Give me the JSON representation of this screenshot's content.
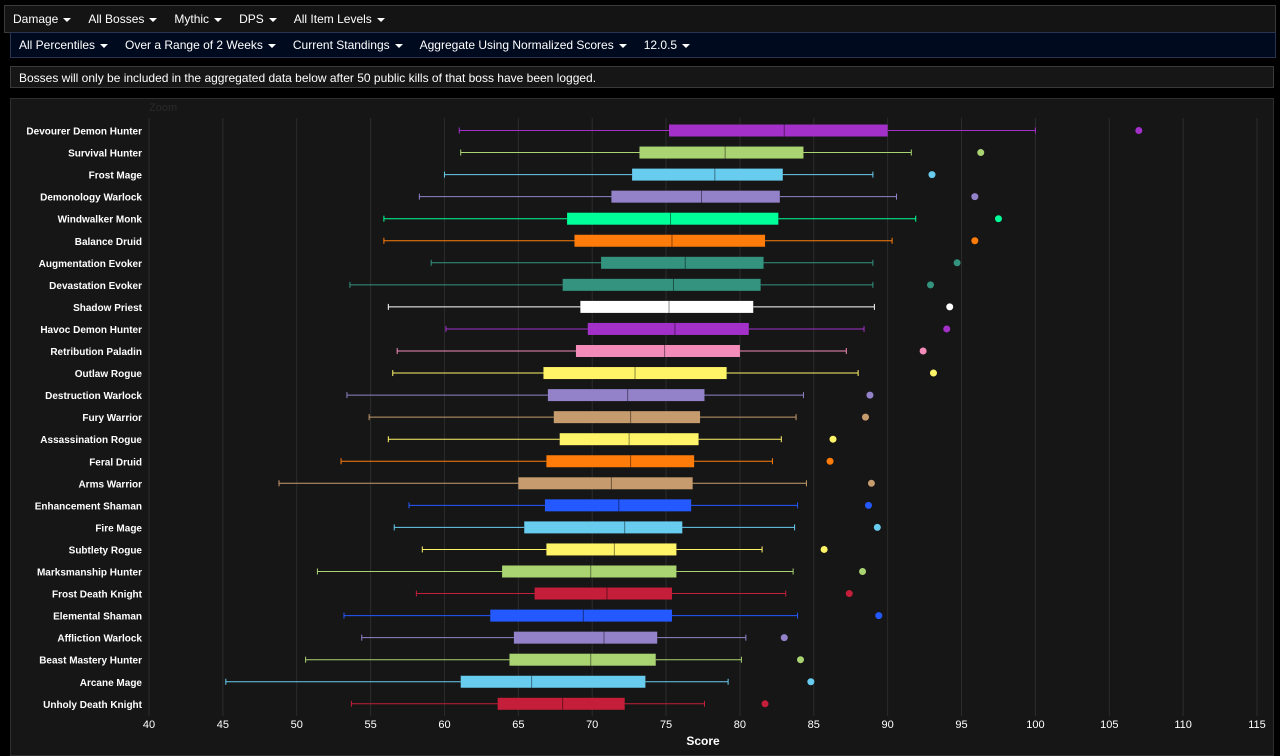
{
  "toolbar_primary": [
    {
      "label": "Damage"
    },
    {
      "label": "All Bosses"
    },
    {
      "label": "Mythic"
    },
    {
      "label": "DPS"
    },
    {
      "label": "All Item Levels"
    }
  ],
  "toolbar_secondary": [
    {
      "label": "All Percentiles"
    },
    {
      "label": "Over a Range of 2 Weeks"
    },
    {
      "label": "Current Standings"
    },
    {
      "label": "Aggregate Using Normalized Scores"
    },
    {
      "label": "12.0.5"
    }
  ],
  "notice": "Bosses will only be included in the aggregated data below after 50 public kills of that boss have been logged.",
  "zoom_label": "Zoom",
  "chart_data": {
    "type": "boxplot",
    "orientation": "horizontal",
    "xlabel": "Score",
    "xlim": [
      40,
      115
    ],
    "xticks": [
      40,
      45,
      50,
      55,
      60,
      65,
      70,
      75,
      80,
      85,
      90,
      95,
      100,
      105,
      110,
      115
    ],
    "grid": true,
    "series": [
      {
        "name": "Devourer Demon Hunter",
        "color": "#a330c9",
        "min": 61,
        "q1": 75.2,
        "median": 83,
        "q3": 90,
        "max": 100,
        "outlier": 107
      },
      {
        "name": "Survival Hunter",
        "color": "#aad372",
        "min": 61.1,
        "q1": 73.2,
        "median": 79,
        "q3": 84.3,
        "max": 91.6,
        "outlier": 96.3
      },
      {
        "name": "Frost Mage",
        "color": "#68ccef",
        "min": 60,
        "q1": 72.7,
        "median": 78.3,
        "q3": 82.9,
        "max": 89,
        "outlier": 93
      },
      {
        "name": "Demonology Warlock",
        "color": "#9382c9",
        "min": 58.3,
        "q1": 71.3,
        "median": 77.4,
        "q3": 82.7,
        "max": 90.6,
        "outlier": 95.9
      },
      {
        "name": "Windwalker Monk",
        "color": "#00ff98",
        "min": 55.9,
        "q1": 68.3,
        "median": 75.3,
        "q3": 82.6,
        "max": 91.9,
        "outlier": 97.5
      },
      {
        "name": "Balance Druid",
        "color": "#ff7c0a",
        "min": 55.9,
        "q1": 68.8,
        "median": 75.4,
        "q3": 81.7,
        "max": 90.3,
        "outlier": 95.9
      },
      {
        "name": "Augmentation Evoker",
        "color": "#33937f",
        "min": 59.1,
        "q1": 70.6,
        "median": 76.3,
        "q3": 81.6,
        "max": 89,
        "outlier": 94.7
      },
      {
        "name": "Devastation Evoker",
        "color": "#33937f",
        "min": 53.6,
        "q1": 68,
        "median": 75.5,
        "q3": 81.4,
        "max": 89,
        "outlier": 92.9
      },
      {
        "name": "Shadow Priest",
        "color": "#ffffff",
        "min": 56.2,
        "q1": 69.2,
        "median": 75.2,
        "q3": 80.9,
        "max": 89.1,
        "outlier": 94.2
      },
      {
        "name": "Havoc Demon Hunter",
        "color": "#a330c9",
        "min": 60.1,
        "q1": 69.7,
        "median": 75.6,
        "q3": 80.6,
        "max": 88.4,
        "outlier": 94
      },
      {
        "name": "Retribution Paladin",
        "color": "#f48cba",
        "min": 56.8,
        "q1": 68.9,
        "median": 74.9,
        "q3": 80,
        "max": 87.2,
        "outlier": 92.4
      },
      {
        "name": "Outlaw Rogue",
        "color": "#fff468",
        "min": 56.5,
        "q1": 66.7,
        "median": 72.9,
        "q3": 79.1,
        "max": 88,
        "outlier": 93.1
      },
      {
        "name": "Destruction Warlock",
        "color": "#9382c9",
        "min": 53.4,
        "q1": 67,
        "median": 72.4,
        "q3": 77.6,
        "max": 84.3,
        "outlier": 88.8
      },
      {
        "name": "Fury Warrior",
        "color": "#c69b6d",
        "min": 54.9,
        "q1": 67.4,
        "median": 72.6,
        "q3": 77.3,
        "max": 83.8,
        "outlier": 88.5
      },
      {
        "name": "Assassination Rogue",
        "color": "#fff468",
        "min": 56.2,
        "q1": 67.8,
        "median": 72.5,
        "q3": 77.2,
        "max": 82.8,
        "outlier": 86.3
      },
      {
        "name": "Feral Druid",
        "color": "#ff7c0a",
        "min": 53,
        "q1": 66.9,
        "median": 72.6,
        "q3": 76.9,
        "max": 82.2,
        "outlier": 86.1
      },
      {
        "name": "Arms Warrior",
        "color": "#c69b6d",
        "min": 48.8,
        "q1": 65,
        "median": 71.3,
        "q3": 76.8,
        "max": 84.5,
        "outlier": 88.9
      },
      {
        "name": "Enhancement Shaman",
        "color": "#2459ff",
        "min": 57.6,
        "q1": 66.8,
        "median": 71.8,
        "q3": 76.7,
        "max": 83.9,
        "outlier": 88.7
      },
      {
        "name": "Fire Mage",
        "color": "#68ccef",
        "min": 56.6,
        "q1": 65.4,
        "median": 72.2,
        "q3": 76.1,
        "max": 83.7,
        "outlier": 89.3
      },
      {
        "name": "Subtlety Rogue",
        "color": "#fff468",
        "min": 58.5,
        "q1": 66.9,
        "median": 71.5,
        "q3": 75.7,
        "max": 81.5,
        "outlier": 85.7
      },
      {
        "name": "Marksmanship Hunter",
        "color": "#aad372",
        "min": 51.4,
        "q1": 63.9,
        "median": 69.9,
        "q3": 75.7,
        "max": 83.6,
        "outlier": 88.3
      },
      {
        "name": "Frost Death Knight",
        "color": "#c41e3a",
        "min": 58.1,
        "q1": 66.1,
        "median": 71,
        "q3": 75.4,
        "max": 83.1,
        "outlier": 87.4
      },
      {
        "name": "Elemental Shaman",
        "color": "#2459ff",
        "min": 53.2,
        "q1": 63.1,
        "median": 69.4,
        "q3": 75.4,
        "max": 83.9,
        "outlier": 89.4
      },
      {
        "name": "Affliction Warlock",
        "color": "#9382c9",
        "min": 54.4,
        "q1": 64.7,
        "median": 70.8,
        "q3": 74.4,
        "max": 80.4,
        "outlier": 83
      },
      {
        "name": "Beast Mastery Hunter",
        "color": "#aad372",
        "min": 50.6,
        "q1": 64.4,
        "median": 69.9,
        "q3": 74.3,
        "max": 80.1,
        "outlier": 84.1
      },
      {
        "name": "Arcane Mage",
        "color": "#68ccef",
        "min": 45.2,
        "q1": 61.1,
        "median": 65.9,
        "q3": 73.6,
        "max": 79.2,
        "outlier": 84.8
      },
      {
        "name": "Unholy Death Knight",
        "color": "#c41e3a",
        "min": 53.7,
        "q1": 63.6,
        "median": 68,
        "q3": 72.2,
        "max": 77.6,
        "outlier": 81.7
      }
    ]
  }
}
